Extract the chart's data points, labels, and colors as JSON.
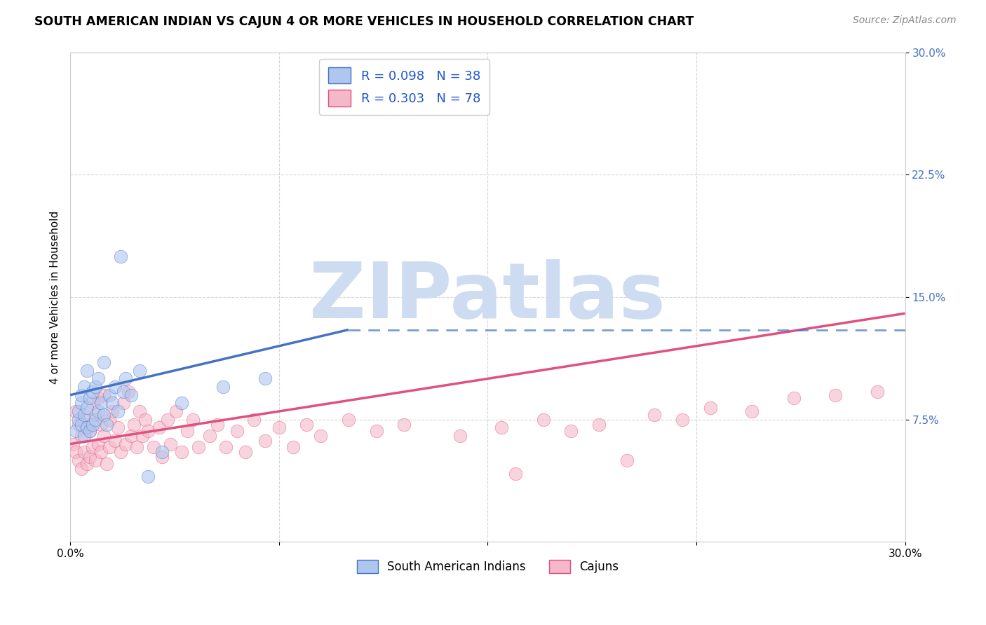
{
  "title": "SOUTH AMERICAN INDIAN VS CAJUN 4 OR MORE VEHICLES IN HOUSEHOLD CORRELATION CHART",
  "source": "Source: ZipAtlas.com",
  "ylabel": "4 or more Vehicles in Household",
  "xmin": 0.0,
  "xmax": 0.3,
  "ymin": 0.0,
  "ymax": 0.3,
  "ytick_values": [
    0.075,
    0.15,
    0.225,
    0.3
  ],
  "ytick_labels": [
    "7.5%",
    "15.0%",
    "22.5%",
    "30.0%"
  ],
  "xtick_values": [
    0.0,
    0.075,
    0.15,
    0.225,
    0.3
  ],
  "xtick_labels": [
    "0.0%",
    "",
    "",
    "",
    "30.0%"
  ],
  "legend1_label": "R = 0.098   N = 38",
  "legend2_label": "R = 0.303   N = 78",
  "legend1_face": "#aec6f0",
  "legend2_face": "#f4b8c8",
  "line1_color": "#4472c4",
  "line2_color": "#e05080",
  "watermark_text": "ZIPatlas",
  "watermark_color": "#cddcf0",
  "background_color": "#ffffff",
  "grid_color": "#cccccc",
  "title_color": "#000000",
  "source_color": "#888888",
  "ylabel_color": "#000000",
  "ytick_color": "#4472c4",
  "xtick_color": "#000000",
  "sa_x": [
    0.002,
    0.003,
    0.003,
    0.004,
    0.004,
    0.004,
    0.005,
    0.005,
    0.005,
    0.006,
    0.006,
    0.006,
    0.007,
    0.007,
    0.008,
    0.008,
    0.009,
    0.009,
    0.01,
    0.01,
    0.011,
    0.012,
    0.012,
    0.013,
    0.014,
    0.015,
    0.016,
    0.017,
    0.018,
    0.019,
    0.02,
    0.022,
    0.025,
    0.028,
    0.033,
    0.04,
    0.055,
    0.07
  ],
  "sa_y": [
    0.068,
    0.075,
    0.08,
    0.072,
    0.085,
    0.09,
    0.065,
    0.078,
    0.095,
    0.07,
    0.082,
    0.105,
    0.068,
    0.088,
    0.072,
    0.092,
    0.075,
    0.095,
    0.08,
    0.1,
    0.085,
    0.078,
    0.11,
    0.072,
    0.09,
    0.085,
    0.095,
    0.08,
    0.175,
    0.092,
    0.1,
    0.09,
    0.105,
    0.04,
    0.055,
    0.085,
    0.095,
    0.1
  ],
  "cj_x": [
    0.001,
    0.002,
    0.002,
    0.003,
    0.003,
    0.004,
    0.004,
    0.005,
    0.005,
    0.006,
    0.006,
    0.007,
    0.007,
    0.008,
    0.008,
    0.009,
    0.009,
    0.01,
    0.01,
    0.011,
    0.011,
    0.012,
    0.012,
    0.013,
    0.014,
    0.014,
    0.015,
    0.016,
    0.017,
    0.018,
    0.019,
    0.02,
    0.021,
    0.022,
    0.023,
    0.024,
    0.025,
    0.026,
    0.027,
    0.028,
    0.03,
    0.032,
    0.033,
    0.035,
    0.036,
    0.038,
    0.04,
    0.042,
    0.044,
    0.046,
    0.05,
    0.053,
    0.056,
    0.06,
    0.063,
    0.066,
    0.07,
    0.075,
    0.08,
    0.085,
    0.09,
    0.1,
    0.11,
    0.12,
    0.14,
    0.155,
    0.16,
    0.17,
    0.18,
    0.19,
    0.2,
    0.21,
    0.22,
    0.23,
    0.245,
    0.26,
    0.275,
    0.29
  ],
  "cj_y": [
    0.06,
    0.055,
    0.08,
    0.05,
    0.072,
    0.045,
    0.065,
    0.055,
    0.075,
    0.048,
    0.07,
    0.052,
    0.068,
    0.058,
    0.085,
    0.05,
    0.078,
    0.06,
    0.088,
    0.055,
    0.072,
    0.065,
    0.09,
    0.048,
    0.075,
    0.058,
    0.08,
    0.062,
    0.07,
    0.055,
    0.085,
    0.06,
    0.092,
    0.065,
    0.072,
    0.058,
    0.08,
    0.065,
    0.075,
    0.068,
    0.058,
    0.07,
    0.052,
    0.075,
    0.06,
    0.08,
    0.055,
    0.068,
    0.075,
    0.058,
    0.065,
    0.072,
    0.058,
    0.068,
    0.055,
    0.075,
    0.062,
    0.07,
    0.058,
    0.072,
    0.065,
    0.075,
    0.068,
    0.072,
    0.065,
    0.07,
    0.042,
    0.075,
    0.068,
    0.072,
    0.05,
    0.078,
    0.075,
    0.082,
    0.08,
    0.088,
    0.09,
    0.092
  ],
  "line1_start_x": 0.0,
  "line1_start_y": 0.09,
  "line1_end_x": 0.1,
  "line1_end_y": 0.13,
  "line1_dash_end_x": 0.3,
  "line1_dash_end_y": 0.13,
  "line2_start_x": 0.0,
  "line2_start_y": 0.06,
  "line2_end_x": 0.3,
  "line2_end_y": 0.14
}
